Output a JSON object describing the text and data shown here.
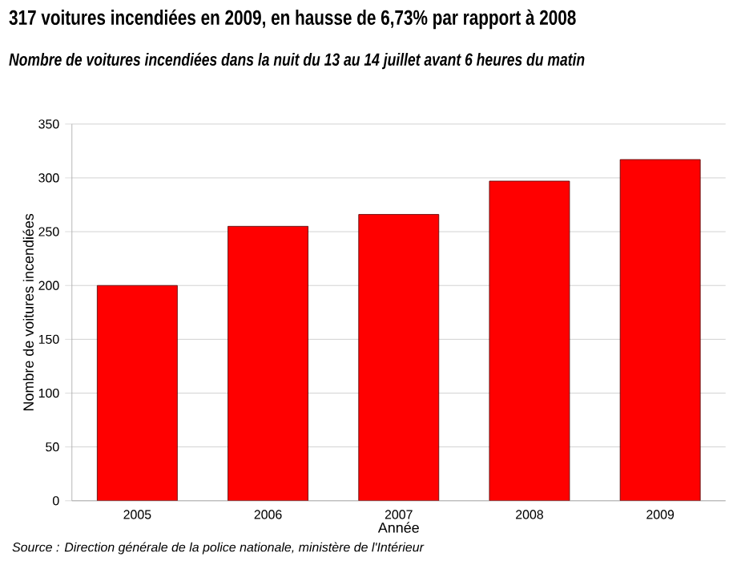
{
  "chart_data": {
    "type": "bar",
    "title": "317 voitures incendiées en 2009, en hausse de 6,73% par rapport à 2008",
    "subtitle": "Nombre de voitures incendiées dans la nuit du 13 au 14 juillet avant 6 heures du matin",
    "xlabel": "Année",
    "ylabel": "Nombre de voitures incendiées",
    "categories": [
      "2005",
      "2006",
      "2007",
      "2008",
      "2009"
    ],
    "values": [
      200,
      255,
      266,
      297,
      317
    ],
    "color": "#ff0000",
    "ylim": [
      0,
      350
    ],
    "yticks": [
      0,
      50,
      100,
      150,
      200,
      250,
      300,
      350
    ],
    "grid": "y",
    "annotations": [
      "Source : Direction générale de la police nationale, ministère de l'Intérieur"
    ]
  }
}
